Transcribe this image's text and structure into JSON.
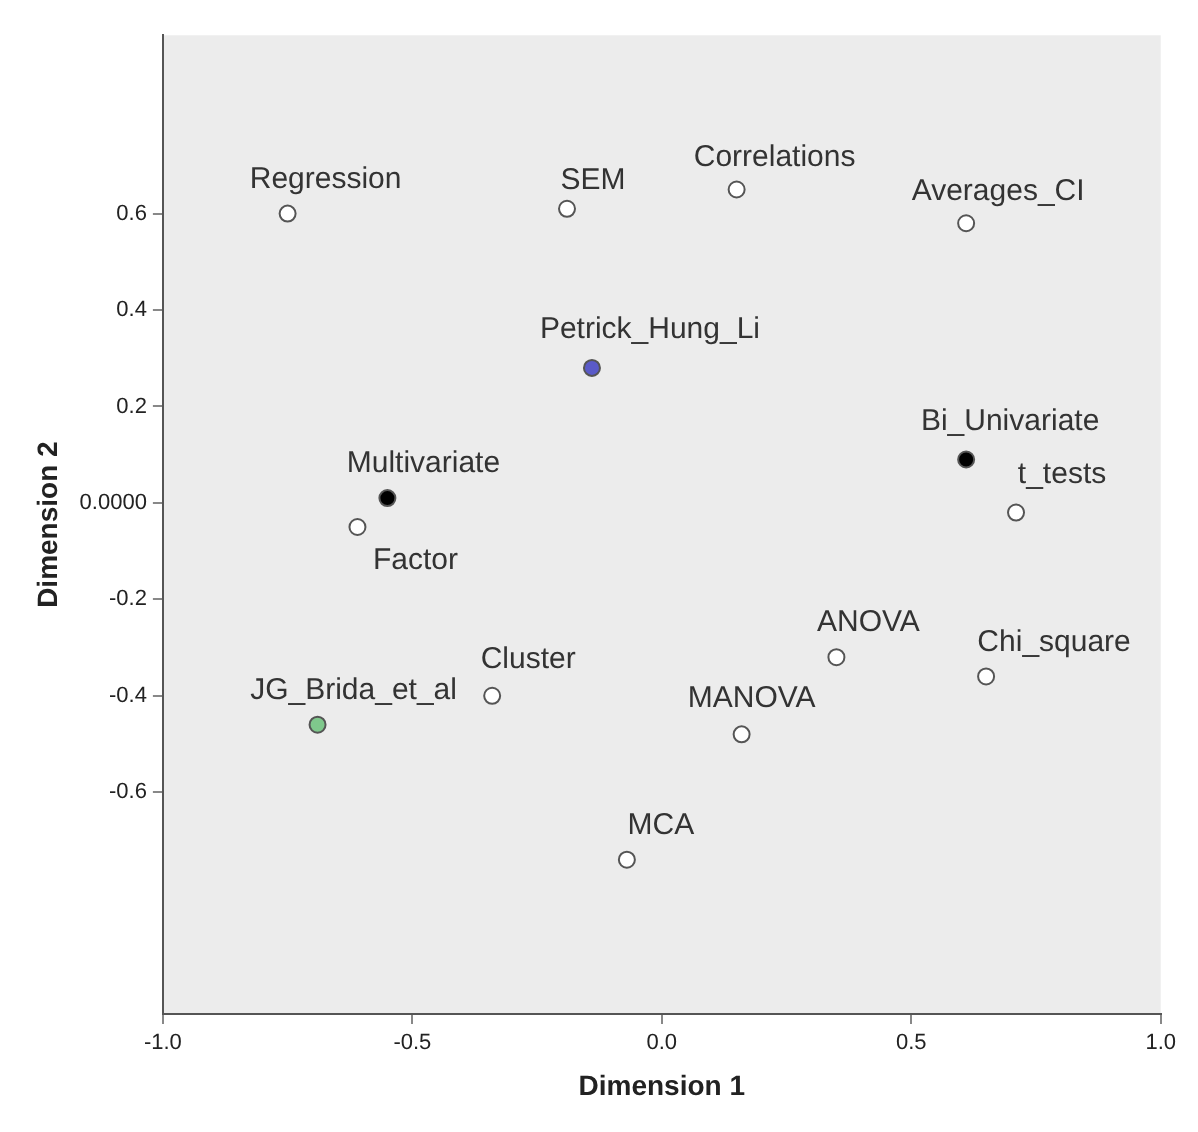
{
  "chart_data": {
    "type": "scatter",
    "xlabel": "Dimension 1",
    "ylabel": "Dimension 2",
    "x": [
      -0.75,
      -0.19,
      0.15,
      0.61,
      -0.14,
      0.61,
      0.71,
      -0.55,
      -0.61,
      -0.34,
      -0.69,
      0.35,
      0.65,
      0.16,
      -0.07
    ],
    "values": [
      0.6,
      0.61,
      0.65,
      0.58,
      0.28,
      0.09,
      -0.02,
      0.01,
      -0.05,
      -0.4,
      -0.46,
      -0.32,
      -0.36,
      -0.48,
      -0.74
    ],
    "colors": [
      "#ffffff",
      "#ffffff",
      "#ffffff",
      "#ffffff",
      "#5a5ac8",
      "#000000",
      "#ffffff",
      "#000000",
      "#ffffff",
      "#ffffff",
      "#7fc88c",
      "#ffffff",
      "#ffffff",
      "#ffffff",
      "#ffffff"
    ],
    "value_labels": [
      "Regression",
      "SEM",
      "Correlations",
      "Averages_CI",
      "Petrick_Hung_Li",
      "Bi_Univariate",
      "t_tests",
      "Multivariate",
      "Factor",
      "Cluster",
      "JG_Brida_et_al",
      "ANOVA",
      "Chi_square",
      "MANOVA",
      "MCA"
    ],
    "xlim": [
      -1,
      1
    ],
    "xticks": [
      {
        "value": -1,
        "label": "-1.0"
      },
      {
        "value": -0.5,
        "label": "-0.5"
      },
      {
        "value": 0,
        "label": "0.0"
      },
      {
        "value": 0.5,
        "label": "0.5"
      },
      {
        "value": 1,
        "label": "1.0"
      }
    ],
    "ylim": [
      -1.06,
      0.97
    ],
    "yticks": [
      -0.6,
      -0.4,
      -0.2,
      {
        "value": 0,
        "label": "0.0000"
      },
      0.2,
      0.4,
      0.6
    ],
    "grid": false,
    "legend": false,
    "marker": "circle"
  }
}
